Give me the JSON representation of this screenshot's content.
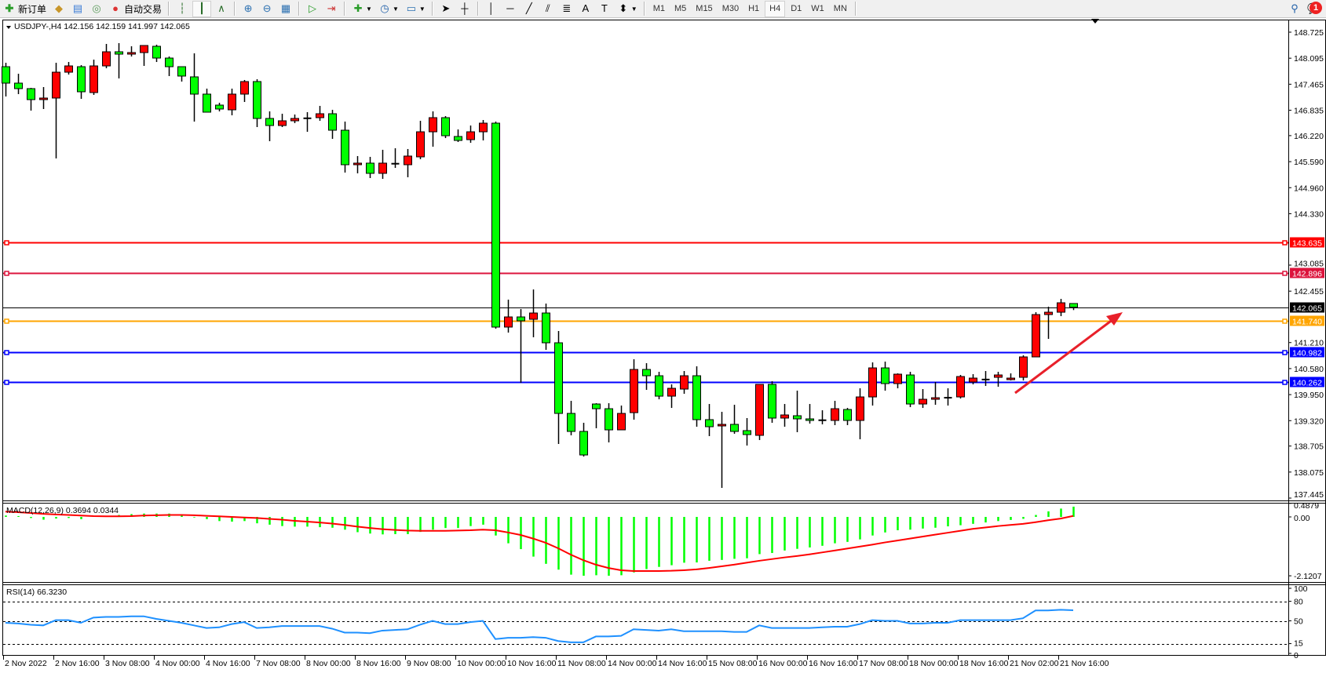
{
  "toolbar": {
    "new_order_label": "新订单",
    "auto_trading_label": "自动交易",
    "timeframes": [
      "M1",
      "M5",
      "M15",
      "M30",
      "H1",
      "H4",
      "D1",
      "W1",
      "MN"
    ],
    "selected_timeframe": "H4",
    "notification_count": "1",
    "icons": [
      "new-order-icon",
      "gold-icon",
      "market-watch-icon",
      "signal-icon",
      "auto-trading-icon",
      "bar-chart-icon",
      "candlestick-icon",
      "line-chart-icon",
      "zoom-in-icon",
      "zoom-out-icon",
      "tile-windows-icon",
      "auto-scroll-icon",
      "chart-shift-icon",
      "indicators-icon",
      "periods-clock-icon",
      "templates-icon",
      "cursor-icon",
      "crosshair-icon",
      "vertical-line-icon",
      "horizontal-line-icon",
      "trendline-icon",
      "fibonacci-icon",
      "fibo-fan-icon",
      "text-icon",
      "text-label-icon",
      "arrows-icon",
      "search-icon",
      "notification-icon"
    ]
  },
  "chart": {
    "header": "USDJPY-,H4  142.156 142.159 141.997 142.065",
    "symbol": "USDJPY-",
    "timeframe": "H4",
    "bull_color": "#ff0000",
    "bear_color": "#00ff00",
    "price_ticks": [
      "148.725",
      "148.095",
      "147.465",
      "146.835",
      "146.220",
      "145.590",
      "144.960",
      "144.330",
      "143.085",
      "142.455",
      "141.210",
      "140.580",
      "139.950",
      "139.320",
      "138.705",
      "138.075",
      "137.445"
    ],
    "levels": [
      {
        "price": 143.635,
        "label": "143.635",
        "color": "#ff0000"
      },
      {
        "price": 142.896,
        "label": "142.896",
        "color": "#dc143c"
      },
      {
        "price": 141.74,
        "label": "141.740",
        "color": "#ffa500"
      },
      {
        "price": 140.982,
        "label": "140.982",
        "color": "#0000ff"
      },
      {
        "price": 140.262,
        "label": "140.262",
        "color": "#0000ff"
      }
    ],
    "current_price": {
      "price": 142.065,
      "label": "142.065",
      "color": "#000000"
    },
    "arrow_color": "#e8202a",
    "time_labels": [
      "2 Nov 2022",
      "2 Nov 16:00",
      "3 Nov 08:00",
      "4 Nov 00:00",
      "4 Nov 16:00",
      "7 Nov 08:00",
      "8 Nov 00:00",
      "8 Nov 16:00",
      "9 Nov 08:00",
      "10 Nov 00:00",
      "10 Nov 16:00",
      "11 Nov 08:00",
      "14 Nov 00:00",
      "14 Nov 16:00",
      "15 Nov 08:00",
      "16 Nov 00:00",
      "16 Nov 16:00",
      "17 Nov 08:00",
      "18 Nov 00:00",
      "18 Nov 16:00",
      "21 Nov 02:00",
      "21 Nov 16:00"
    ]
  },
  "chart_data": {
    "type": "candlestick",
    "ylim": [
      137.445,
      148.725
    ],
    "ohlc": [
      [
        147.889,
        147.984,
        147.168,
        147.491
      ],
      [
        147.491,
        147.718,
        147.225,
        147.358
      ],
      [
        147.358,
        147.377,
        146.826,
        147.092
      ],
      [
        147.092,
        147.396,
        146.864,
        147.13
      ],
      [
        147.13,
        147.984,
        145.668,
        147.756
      ],
      [
        147.756,
        148.003,
        147.699,
        147.908
      ],
      [
        147.889,
        147.927,
        147.111,
        147.282
      ],
      [
        147.263,
        148.06,
        147.206,
        147.908
      ],
      [
        147.908,
        148.44,
        147.851,
        148.25
      ],
      [
        148.25,
        148.459,
        147.605,
        148.193
      ],
      [
        148.193,
        148.383,
        148.136,
        148.231
      ],
      [
        148.231,
        148.402,
        147.908,
        148.402
      ],
      [
        148.383,
        148.421,
        148.003,
        148.098
      ],
      [
        148.098,
        148.136,
        147.662,
        147.889
      ],
      [
        147.889,
        147.889,
        147.529,
        147.662
      ],
      [
        147.643,
        148.212,
        146.56,
        147.225
      ],
      [
        147.225,
        147.358,
        146.788,
        146.788
      ],
      [
        146.959,
        147.016,
        146.807,
        146.864
      ],
      [
        146.845,
        147.358,
        146.712,
        147.225
      ],
      [
        147.225,
        147.567,
        147.035,
        147.529
      ],
      [
        147.529,
        147.586,
        146.427,
        146.636
      ],
      [
        146.636,
        146.807,
        146.085,
        146.465
      ],
      [
        146.465,
        146.75,
        146.427,
        146.579
      ],
      [
        146.579,
        146.731,
        146.522,
        146.636
      ],
      [
        146.636,
        146.788,
        146.313,
        146.64
      ],
      [
        146.655,
        146.94,
        146.579,
        146.75
      ],
      [
        146.75,
        146.845,
        146.142,
        146.351
      ],
      [
        146.351,
        146.56,
        145.326,
        145.516
      ],
      [
        145.516,
        145.725,
        145.307,
        145.554
      ],
      [
        145.554,
        145.706,
        145.193,
        145.307
      ],
      [
        145.307,
        145.877,
        145.174,
        145.554
      ],
      [
        145.535,
        145.914,
        145.44,
        145.54
      ],
      [
        145.516,
        145.896,
        145.212,
        145.725
      ],
      [
        145.706,
        146.579,
        145.649,
        146.313
      ],
      [
        146.313,
        146.807,
        145.952,
        146.655
      ],
      [
        146.655,
        146.693,
        146.161,
        146.218
      ],
      [
        146.199,
        146.37,
        146.066,
        146.104
      ],
      [
        146.123,
        146.465,
        146.047,
        146.313
      ],
      [
        146.313,
        146.598,
        146.104,
        146.522
      ],
      [
        146.522,
        146.56,
        141.547,
        141.585
      ],
      [
        141.585,
        142.249,
        141.452,
        141.831
      ],
      [
        141.831,
        142.022,
        140.236,
        141.737
      ],
      [
        141.774,
        142.496,
        141.338,
        141.926
      ],
      [
        141.926,
        142.154,
        141.034,
        141.205
      ],
      [
        141.205,
        141.49,
        138.755,
        139.495
      ],
      [
        139.495,
        139.799,
        138.964,
        139.059
      ],
      [
        139.059,
        139.268,
        138.451,
        138.489
      ],
      [
        139.723,
        139.742,
        139.135,
        139.609
      ],
      [
        139.609,
        139.742,
        138.793,
        139.097
      ],
      [
        139.097,
        139.685,
        139.097,
        139.495
      ],
      [
        139.514,
        140.806,
        139.344,
        140.559
      ],
      [
        140.559,
        140.711,
        140.065,
        140.407
      ],
      [
        140.407,
        140.502,
        139.837,
        139.913
      ],
      [
        139.913,
        140.198,
        139.628,
        140.103
      ],
      [
        140.084,
        140.521,
        139.97,
        140.407
      ],
      [
        140.407,
        140.635,
        139.173,
        139.344
      ],
      [
        139.344,
        139.723,
        138.945,
        139.173
      ],
      [
        139.192,
        139.533,
        137.692,
        139.23
      ],
      [
        139.23,
        139.704,
        139.002,
        139.059
      ],
      [
        139.078,
        139.382,
        138.717,
        138.983
      ],
      [
        138.964,
        140.198,
        138.85,
        140.198
      ],
      [
        140.198,
        140.274,
        139.268,
        139.382
      ],
      [
        139.382,
        139.723,
        139.173,
        139.458
      ],
      [
        139.439,
        140.046,
        139.04,
        139.363
      ],
      [
        139.363,
        139.723,
        139.249,
        139.325
      ],
      [
        139.325,
        139.571,
        139.23,
        139.33
      ],
      [
        139.325,
        139.799,
        139.211,
        139.609
      ],
      [
        139.59,
        139.628,
        139.211,
        139.325
      ],
      [
        139.325,
        140.103,
        138.869,
        139.894
      ],
      [
        139.894,
        140.73,
        139.685,
        140.597
      ],
      [
        140.597,
        140.749,
        140.046,
        140.217
      ],
      [
        140.217,
        140.464,
        140.103,
        140.445
      ],
      [
        140.426,
        140.502,
        139.647,
        139.723
      ],
      [
        139.723,
        140.084,
        139.628,
        139.837
      ],
      [
        139.837,
        140.255,
        139.704,
        139.875
      ],
      [
        139.875,
        140.103,
        139.685,
        139.87
      ],
      [
        139.894,
        140.426,
        139.856,
        140.388
      ],
      [
        140.255,
        140.445,
        140.198,
        140.35
      ],
      [
        140.312,
        140.521,
        140.16,
        140.315
      ],
      [
        140.369,
        140.502,
        140.141,
        140.426
      ],
      [
        140.312,
        140.464,
        140.293,
        140.35
      ],
      [
        140.369,
        140.901,
        140.293,
        140.863
      ],
      [
        140.863,
        141.945,
        140.863,
        141.888
      ],
      [
        141.888,
        142.079,
        141.3,
        141.945
      ],
      [
        141.945,
        142.268,
        141.85,
        142.173
      ],
      [
        142.156,
        142.159,
        141.997,
        142.065
      ]
    ],
    "macd": {
      "label": "MACD(12,26,9) 0.3694 0.0344",
      "ylim": [
        -2.1207,
        0.4879
      ],
      "ticks": [
        "0.4879",
        "0.00",
        "-2.1207"
      ],
      "hist_color": "#00ff00",
      "signal_color": "#ff0000",
      "histogram": [
        0.05,
        0.03,
        -0.04,
        -0.1,
        -0.06,
        -0.04,
        -0.08,
        0.0,
        0.02,
        0.07,
        0.1,
        0.12,
        0.12,
        0.12,
        0.06,
        -0.02,
        -0.08,
        -0.15,
        -0.17,
        -0.15,
        -0.23,
        -0.28,
        -0.33,
        -0.35,
        -0.35,
        -0.37,
        -0.39,
        -0.46,
        -0.55,
        -0.6,
        -0.63,
        -0.62,
        -0.62,
        -0.54,
        -0.46,
        -0.4,
        -0.4,
        -0.33,
        -0.28,
        -0.67,
        -0.95,
        -1.16,
        -1.43,
        -1.69,
        -1.9,
        -2.08,
        -2.12,
        -2.1,
        -2.12,
        -2.1,
        -2.0,
        -1.88,
        -1.8,
        -1.74,
        -1.65,
        -1.64,
        -1.58,
        -1.55,
        -1.51,
        -1.49,
        -1.34,
        -1.3,
        -1.21,
        -1.15,
        -1.1,
        -1.04,
        -0.95,
        -0.9,
        -0.81,
        -0.67,
        -0.56,
        -0.48,
        -0.46,
        -0.42,
        -0.39,
        -0.34,
        -0.3,
        -0.25,
        -0.2,
        -0.15,
        -0.11,
        -0.07,
        0.07,
        0.2,
        0.3,
        0.3694
      ],
      "signal": [
        0.19,
        0.17,
        0.14,
        0.11,
        0.09,
        0.07,
        0.05,
        0.03,
        0.02,
        0.02,
        0.03,
        0.05,
        0.06,
        0.07,
        0.07,
        0.06,
        0.04,
        0.02,
        0.0,
        -0.02,
        -0.04,
        -0.07,
        -0.1,
        -0.14,
        -0.17,
        -0.2,
        -0.24,
        -0.29,
        -0.35,
        -0.4,
        -0.44,
        -0.47,
        -0.49,
        -0.5,
        -0.5,
        -0.5,
        -0.49,
        -0.48,
        -0.46,
        -0.48,
        -0.56,
        -0.65,
        -0.78,
        -0.93,
        -1.13,
        -1.36,
        -1.56,
        -1.72,
        -1.84,
        -1.92,
        -1.95,
        -1.95,
        -1.95,
        -1.94,
        -1.92,
        -1.89,
        -1.84,
        -1.78,
        -1.72,
        -1.65,
        -1.58,
        -1.52,
        -1.46,
        -1.41,
        -1.35,
        -1.28,
        -1.21,
        -1.14,
        -1.07,
        -1.0,
        -0.92,
        -0.85,
        -0.78,
        -0.71,
        -0.64,
        -0.57,
        -0.5,
        -0.43,
        -0.38,
        -0.33,
        -0.29,
        -0.25,
        -0.19,
        -0.12,
        -0.06,
        0.0344
      ]
    },
    "rsi": {
      "label": "RSI(14) 66.3230",
      "ylim": [
        0,
        100
      ],
      "ticks": [
        "100",
        "80",
        "50",
        "15",
        "0"
      ],
      "levels": [
        80,
        50,
        15
      ],
      "color": "#1e90ff",
      "values": [
        47,
        46,
        44,
        43,
        51,
        51,
        47,
        55,
        56,
        56,
        57,
        57,
        53,
        50,
        47,
        43,
        39,
        40,
        45,
        48,
        39,
        40,
        42,
        42,
        42,
        42,
        38,
        32,
        32,
        31,
        35,
        36,
        37,
        44,
        50,
        45,
        45,
        48,
        50,
        22,
        24,
        24,
        25,
        24,
        19,
        17,
        17,
        26,
        26,
        27,
        37,
        36,
        35,
        37,
        34,
        34,
        34,
        34,
        33,
        33,
        43,
        39,
        39,
        39,
        39,
        40,
        41,
        41,
        45,
        51,
        50,
        50,
        46,
        46,
        47,
        47,
        51,
        51,
        51,
        51,
        51,
        54,
        66,
        66,
        67,
        66.323
      ]
    }
  }
}
